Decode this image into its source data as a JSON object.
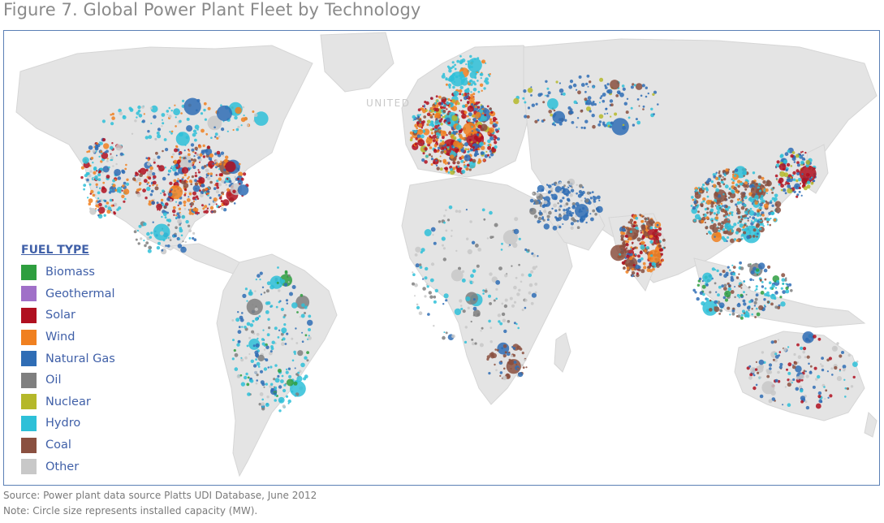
{
  "figure_title": "Figure 7. Global Power Plant Fleet by Technology",
  "map_labels": {
    "country": "UNITED"
  },
  "legend": {
    "title": "FUEL TYPE",
    "items": [
      {
        "label": "Biomass",
        "color": "#2e9e3f"
      },
      {
        "label": "Geothermal",
        "color": "#a070c8"
      },
      {
        "label": "Solar",
        "color": "#b01020"
      },
      {
        "label": "Wind",
        "color": "#f08020"
      },
      {
        "label": "Natural Gas",
        "color": "#2f6db5"
      },
      {
        "label": "Oil",
        "color": "#7f7f7f"
      },
      {
        "label": "Nuclear",
        "color": "#b5b82a"
      },
      {
        "label": "Hydro",
        "color": "#2ec0d8"
      },
      {
        "label": "Coal",
        "color": "#8a5040"
      },
      {
        "label": "Other",
        "color": "#c8c8c8"
      }
    ]
  },
  "source_text": "Source: Power plant data source Platts UDI Database, June 2012",
  "note_text": "Note: Circle size represents installed capacity (MW).",
  "colors": {
    "land": "#e4e4e4",
    "ocean": "#ffffff",
    "border": "#5b7fb5"
  }
}
